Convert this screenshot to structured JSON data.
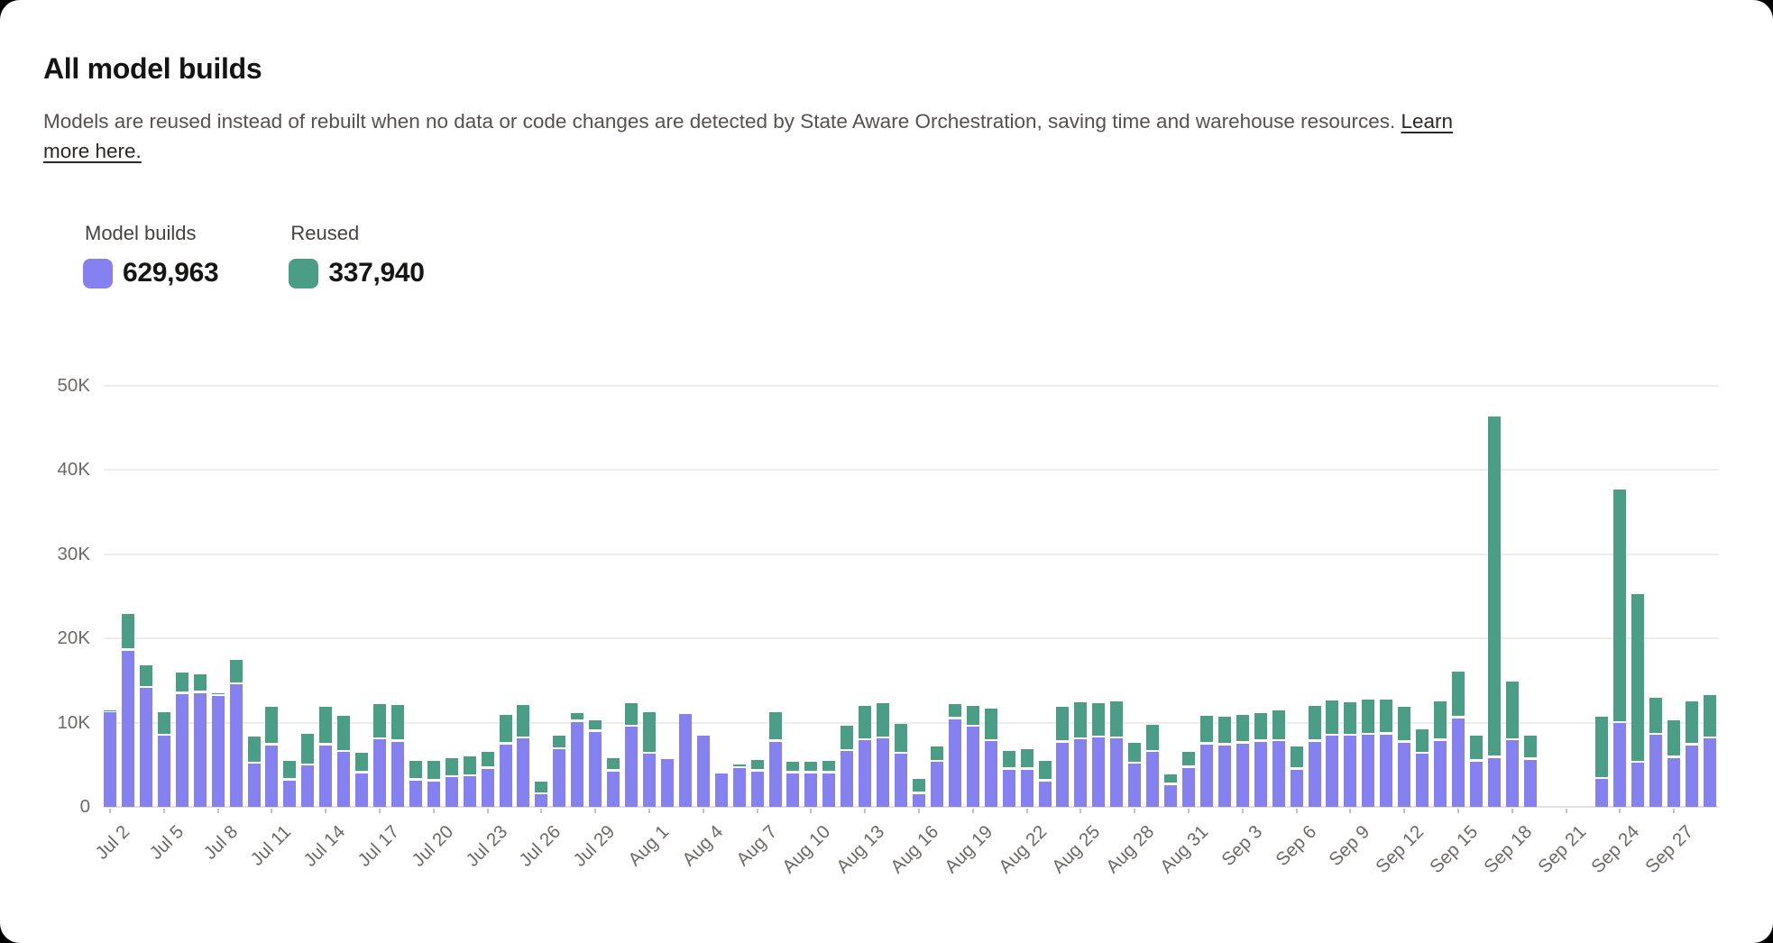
{
  "header": {
    "title": "All model builds",
    "description": "Models are reused instead of rebuilt when no data or code changes are detected by State Aware Orchestration, saving time and warehouse resources.",
    "link_part1": "Learn",
    "link_part2": "more here.",
    "link_full": "Learn more here."
  },
  "legend": {
    "items": [
      {
        "label": "Model builds",
        "value": "629,963",
        "color": "#8681F0"
      },
      {
        "label": "Reused",
        "value": "337,940",
        "color": "#4A9E85"
      }
    ]
  },
  "chart_data": {
    "type": "bar",
    "stacked": true,
    "title": "All model builds",
    "values_in": "thousands",
    "y_ticks": [
      "0",
      "10K",
      "20K",
      "30K",
      "40K",
      "50K"
    ],
    "ylim_k": [
      0,
      50
    ],
    "x_tick_every": 3,
    "grid": "horizontal",
    "legend_position": "top-left",
    "x": [
      "Jul 2",
      "Jul 3",
      "Jul 4",
      "Jul 5",
      "Jul 6",
      "Jul 7",
      "Jul 8",
      "Jul 9",
      "Jul 10",
      "Jul 11",
      "Jul 12",
      "Jul 13",
      "Jul 14",
      "Jul 15",
      "Jul 16",
      "Jul 17",
      "Jul 18",
      "Jul 19",
      "Jul 20",
      "Jul 21",
      "Jul 22",
      "Jul 23",
      "Jul 24",
      "Jul 25",
      "Jul 26",
      "Jul 27",
      "Jul 28",
      "Jul 29",
      "Jul 30",
      "Jul 31",
      "Aug 1",
      "Aug 2",
      "Aug 3",
      "Aug 4",
      "Aug 5",
      "Aug 6",
      "Aug 7",
      "Aug 8",
      "Aug 9",
      "Aug 10",
      "Aug 11",
      "Aug 12",
      "Aug 13",
      "Aug 14",
      "Aug 15",
      "Aug 16",
      "Aug 17",
      "Aug 18",
      "Aug 19",
      "Aug 20",
      "Aug 21",
      "Aug 22",
      "Aug 23",
      "Aug 24",
      "Aug 25",
      "Aug 26",
      "Aug 27",
      "Aug 28",
      "Aug 29",
      "Aug 30",
      "Aug 31",
      "Sep 1",
      "Sep 2",
      "Sep 3",
      "Sep 4",
      "Sep 5",
      "Sep 6",
      "Sep 7",
      "Sep 8",
      "Sep 9",
      "Sep 10",
      "Sep 11",
      "Sep 12",
      "Sep 13",
      "Sep 14",
      "Sep 15",
      "Sep 16",
      "Sep 17",
      "Sep 18",
      "Sep 19",
      "Sep 20",
      "Sep 21",
      "Sep 22",
      "Sep 23",
      "Sep 24",
      "Sep 25",
      "Sep 26",
      "Sep 27",
      "Sep 28",
      "Sep 29"
    ],
    "series": [
      {
        "name": "Model builds",
        "color": "#8681F0",
        "values_k": [
          11.2,
          18.5,
          14.1,
          8.4,
          13.4,
          13.5,
          13.1,
          14.5,
          5.1,
          7.3,
          3.1,
          4.9,
          7.3,
          6.5,
          4.0,
          8.0,
          7.7,
          3.1,
          3.0,
          3.5,
          3.6,
          4.5,
          7.4,
          8.1,
          1.5,
          6.8,
          10.1,
          8.9,
          4.2,
          9.5,
          6.3,
          5.7,
          11.0,
          8.5,
          4.0,
          4.6,
          4.2,
          7.7,
          4.0,
          4.0,
          4.0,
          6.6,
          7.9,
          8.1,
          6.3,
          1.5,
          5.3,
          10.4,
          9.5,
          7.8,
          4.4,
          4.4,
          3.0,
          7.6,
          8.0,
          8.2,
          8.1,
          5.1,
          6.5,
          2.6,
          4.6,
          7.4,
          7.3,
          7.5,
          7.7,
          7.8,
          4.4,
          7.7,
          8.4,
          8.4,
          8.5,
          8.6,
          7.6,
          6.3,
          7.8,
          10.5,
          5.4,
          5.8,
          7.9,
          5.6,
          0,
          0,
          0,
          3.3,
          9.9,
          5.2,
          8.5,
          5.8,
          7.3,
          8.1
        ]
      },
      {
        "name": "Reused",
        "color": "#4A9E85",
        "values_k": [
          0.3,
          4.4,
          2.7,
          2.8,
          2.5,
          2.2,
          0.4,
          2.9,
          3.3,
          4.6,
          2.4,
          3.8,
          4.6,
          4.3,
          2.4,
          4.2,
          4.4,
          2.4,
          2.5,
          2.3,
          2.4,
          2.0,
          3.5,
          4.0,
          1.5,
          1.7,
          1.0,
          1.4,
          1.6,
          2.8,
          4.9,
          0,
          0,
          0,
          0,
          0.4,
          1.4,
          3.5,
          1.3,
          1.3,
          1.5,
          3.0,
          4.1,
          4.2,
          3.5,
          1.8,
          1.9,
          1.8,
          2.5,
          3.9,
          2.2,
          2.4,
          2.5,
          4.3,
          4.4,
          4.1,
          4.4,
          2.5,
          3.2,
          1.3,
          1.9,
          3.4,
          3.4,
          3.4,
          3.4,
          3.6,
          2.8,
          4.3,
          4.2,
          4.0,
          4.2,
          4.1,
          4.3,
          2.9,
          4.7,
          5.5,
          3.1,
          40.5,
          7.0,
          2.9,
          0,
          0,
          0,
          7.4,
          27.7,
          20.0,
          4.4,
          4.5,
          5.2,
          5.2
        ]
      }
    ]
  }
}
